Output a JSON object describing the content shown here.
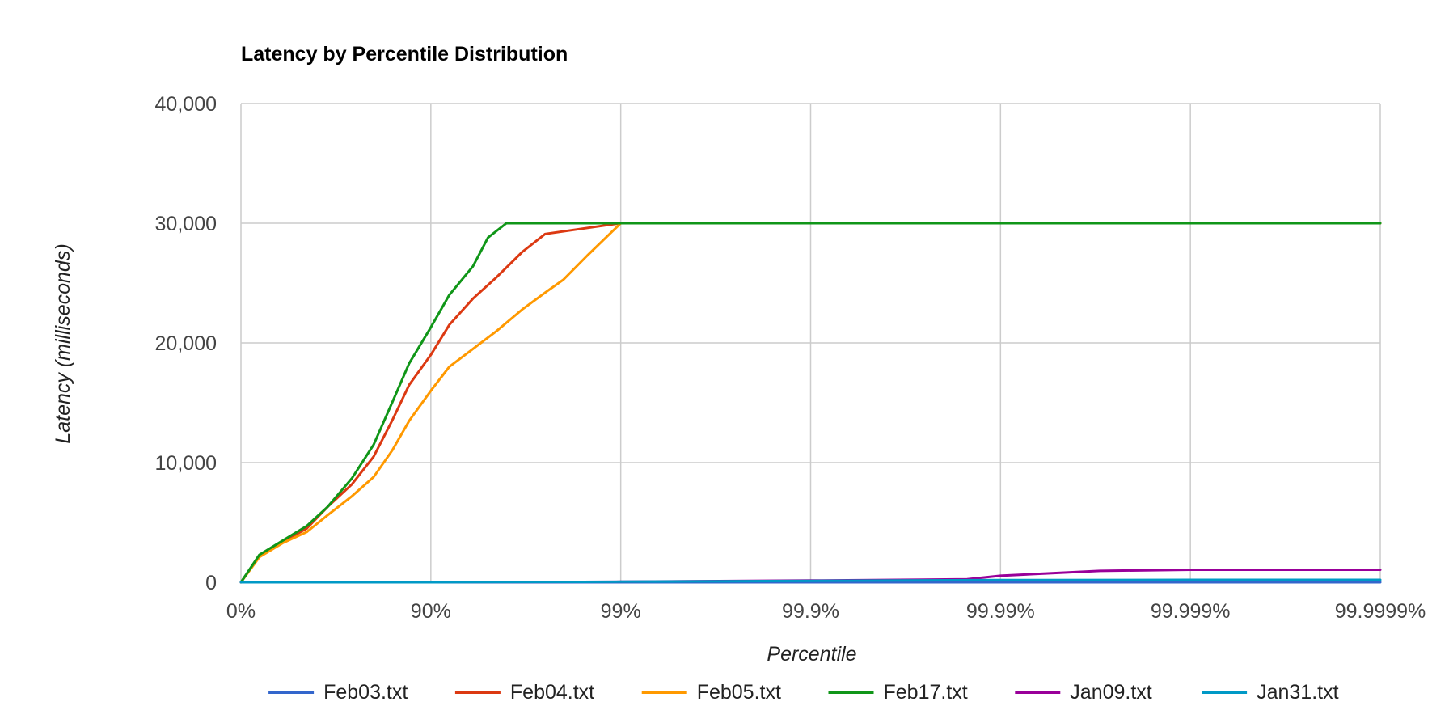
{
  "chart_data": {
    "type": "line",
    "title": "Latency by Percentile Distribution",
    "xlabel": "Percentile",
    "ylabel": "Latency (milliseconds)",
    "x_scale": "log-inverse-percentile",
    "x_ticks": [
      "0%",
      "90%",
      "99%",
      "99.9%",
      "99.99%",
      "99.999%",
      "99.9999%"
    ],
    "x_tick_values": [
      0,
      90,
      99,
      99.9,
      99.99,
      99.999,
      99.9999
    ],
    "y_ticks": [
      "0",
      "10,000",
      "20,000",
      "30,000",
      "40,000"
    ],
    "y_tick_values": [
      0,
      10000,
      20000,
      30000,
      40000
    ],
    "ylim": [
      0,
      40000
    ],
    "grid": true,
    "legend_position": "bottom",
    "series": [
      {
        "name": "Feb03.txt",
        "color": "#3366cc",
        "x": [
          0,
          50,
          90,
          99,
          99.9,
          99.99,
          99.999,
          99.9999
        ],
        "y": [
          0,
          0,
          0,
          0,
          0,
          0,
          0,
          0
        ]
      },
      {
        "name": "Feb04.txt",
        "color": "#dc3912",
        "x": [
          0,
          20,
          40,
          55,
          65,
          74,
          80,
          84,
          87,
          90,
          92,
          94,
          95.5,
          96.7,
          97.5,
          99,
          99.9,
          99.99,
          99.999,
          99.9999
        ],
        "y": [
          0,
          2200,
          3400,
          4500,
          6300,
          8200,
          10500,
          13500,
          16500,
          19000,
          21500,
          23700,
          25500,
          27600,
          29100,
          30000,
          30000,
          30000,
          30000,
          30000
        ]
      },
      {
        "name": "Feb05.txt",
        "color": "#ff9900",
        "x": [
          0,
          20,
          40,
          55,
          65,
          74,
          80,
          84,
          87,
          90,
          92,
          94,
          95.5,
          96.7,
          97.5,
          98,
          98.5,
          99,
          99.9,
          99.99,
          99.999,
          99.9999
        ],
        "y": [
          0,
          2100,
          3300,
          4200,
          5600,
          7200,
          8800,
          11000,
          13500,
          16000,
          18000,
          19500,
          21000,
          22800,
          24200,
          25300,
          27300,
          30000,
          30000,
          30000,
          30000,
          30000
        ]
      },
      {
        "name": "Feb17.txt",
        "color": "#109618",
        "x": [
          0,
          20,
          40,
          55,
          65,
          74,
          80,
          84,
          87,
          90,
          92,
          94,
          95,
          96,
          99,
          99.9,
          99.99,
          99.999,
          99.9999
        ],
        "y": [
          0,
          2300,
          3500,
          4700,
          6300,
          8700,
          11500,
          15000,
          18300,
          21300,
          24000,
          26400,
          28800,
          30000,
          30000,
          30000,
          30000,
          30000,
          30000
        ]
      },
      {
        "name": "Jan09.txt",
        "color": "#990099",
        "x": [
          0,
          90,
          99,
          99.9,
          99.985,
          99.99,
          99.997,
          99.999,
          99.9999
        ],
        "y": [
          0,
          0,
          50,
          150,
          250,
          550,
          950,
          1050,
          1050
        ]
      },
      {
        "name": "Jan31.txt",
        "color": "#0099c6",
        "x": [
          0,
          90,
          99,
          99.9,
          99.99,
          99.999,
          99.9999
        ],
        "y": [
          0,
          0,
          50,
          120,
          180,
          200,
          200
        ]
      }
    ]
  }
}
